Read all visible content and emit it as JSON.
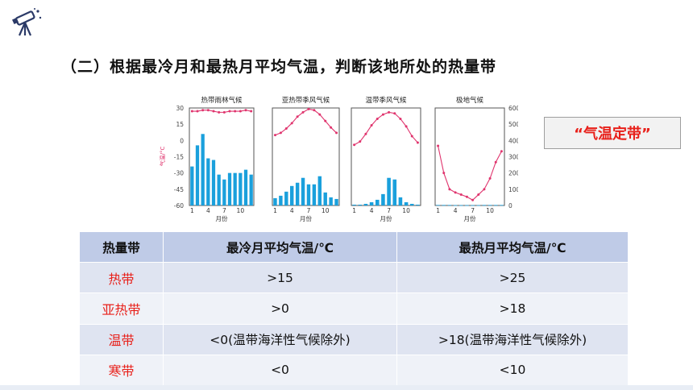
{
  "heading": "（二）根据最冷月和最热月平均气温，判断该地所处的热量带",
  "tag": "“气温定带”",
  "icons": {
    "logo": "telescope-icon"
  },
  "colors": {
    "accent_red": "#e8201a",
    "header_bg": "#bfcbe7",
    "row_dark": "#dfe4f1",
    "row_light": "#eff2f8",
    "line": "#e0356e",
    "bar": "#1aa0dc"
  },
  "climate_charts": {
    "left_axis_label": "气温/°C",
    "right_axis_label": "降水量/mm",
    "left_ticks": [
      "30",
      "15",
      "0",
      "-15",
      "-30",
      "-45",
      "-60"
    ],
    "right_ticks": [
      "600",
      "500",
      "400",
      "300",
      "200",
      "100",
      "0"
    ],
    "month_ticks": [
      "1",
      "4",
      "7",
      "10"
    ],
    "month_label": "月份"
  },
  "chart_data": [
    {
      "type": "bar",
      "title": "热带雨林气候",
      "categories": [
        "1",
        "2",
        "3",
        "4",
        "5",
        "6",
        "7",
        "8",
        "9",
        "10",
        "11",
        "12"
      ],
      "series": [
        {
          "name": "气温",
          "type": "line",
          "values": [
            27,
            27,
            28,
            28,
            27,
            26,
            26,
            27,
            27,
            27,
            28,
            27
          ]
        },
        {
          "name": "降水量",
          "type": "bar",
          "values": [
            240,
            370,
            440,
            290,
            280,
            190,
            160,
            200,
            200,
            200,
            220,
            190
          ]
        }
      ],
      "ylim_temp": [
        -60,
        30
      ],
      "ylim_precip": [
        0,
        600
      ]
    },
    {
      "type": "bar",
      "title": "亚热带季风气候",
      "categories": [
        "1",
        "2",
        "3",
        "4",
        "5",
        "6",
        "7",
        "8",
        "9",
        "10",
        "11",
        "12"
      ],
      "series": [
        {
          "name": "气温",
          "type": "line",
          "values": [
            5,
            7,
            11,
            16,
            22,
            26,
            29,
            28,
            24,
            18,
            12,
            7
          ]
        },
        {
          "name": "降水量",
          "type": "bar",
          "values": [
            45,
            60,
            85,
            120,
            140,
            170,
            130,
            130,
            180,
            80,
            50,
            40
          ]
        }
      ],
      "ylim_temp": [
        -60,
        30
      ],
      "ylim_precip": [
        0,
        600
      ]
    },
    {
      "type": "bar",
      "title": "温带季风气候",
      "categories": [
        "1",
        "2",
        "3",
        "4",
        "5",
        "6",
        "7",
        "8",
        "9",
        "10",
        "11",
        "12"
      ],
      "series": [
        {
          "name": "气温",
          "type": "line",
          "values": [
            -4,
            -1,
            6,
            14,
            20,
            24,
            26,
            25,
            20,
            13,
            4,
            -2
          ]
        },
        {
          "name": "降水量",
          "type": "bar",
          "values": [
            5,
            5,
            10,
            20,
            35,
            70,
            170,
            160,
            50,
            20,
            10,
            5
          ]
        }
      ],
      "ylim_temp": [
        -60,
        30
      ],
      "ylim_precip": [
        0,
        600
      ]
    },
    {
      "type": "line",
      "title": "极地气候",
      "categories": [
        "1",
        "2",
        "3",
        "4",
        "5",
        "6",
        "7",
        "8",
        "9",
        "10",
        "11",
        "12"
      ],
      "series": [
        {
          "name": "气温",
          "type": "line",
          "values": [
            -5,
            -30,
            -45,
            -48,
            -50,
            -52,
            -55,
            -50,
            -45,
            -35,
            -20,
            -10
          ]
        },
        {
          "name": "降水量",
          "type": "bar",
          "values": [
            3,
            3,
            3,
            2,
            2,
            2,
            2,
            2,
            3,
            3,
            3,
            3
          ]
        }
      ],
      "ylim_temp": [
        -60,
        30
      ],
      "ylim_precip": [
        0,
        600
      ]
    }
  ],
  "table": {
    "headers": [
      "热量带",
      "最冷月平均气温/℃",
      "最热月平均气温/℃"
    ],
    "rows": [
      {
        "zone": "热带",
        "cold": ">15",
        "hot": ">25"
      },
      {
        "zone": "亚热带",
        "cold": ">0",
        "hot": ">18"
      },
      {
        "zone": "温带",
        "cold": "<0(温带海洋性气候除外)",
        "hot": ">18(温带海洋性气候除外)"
      },
      {
        "zone": "寒带",
        "cold": "<0",
        "hot": "<10"
      }
    ]
  }
}
